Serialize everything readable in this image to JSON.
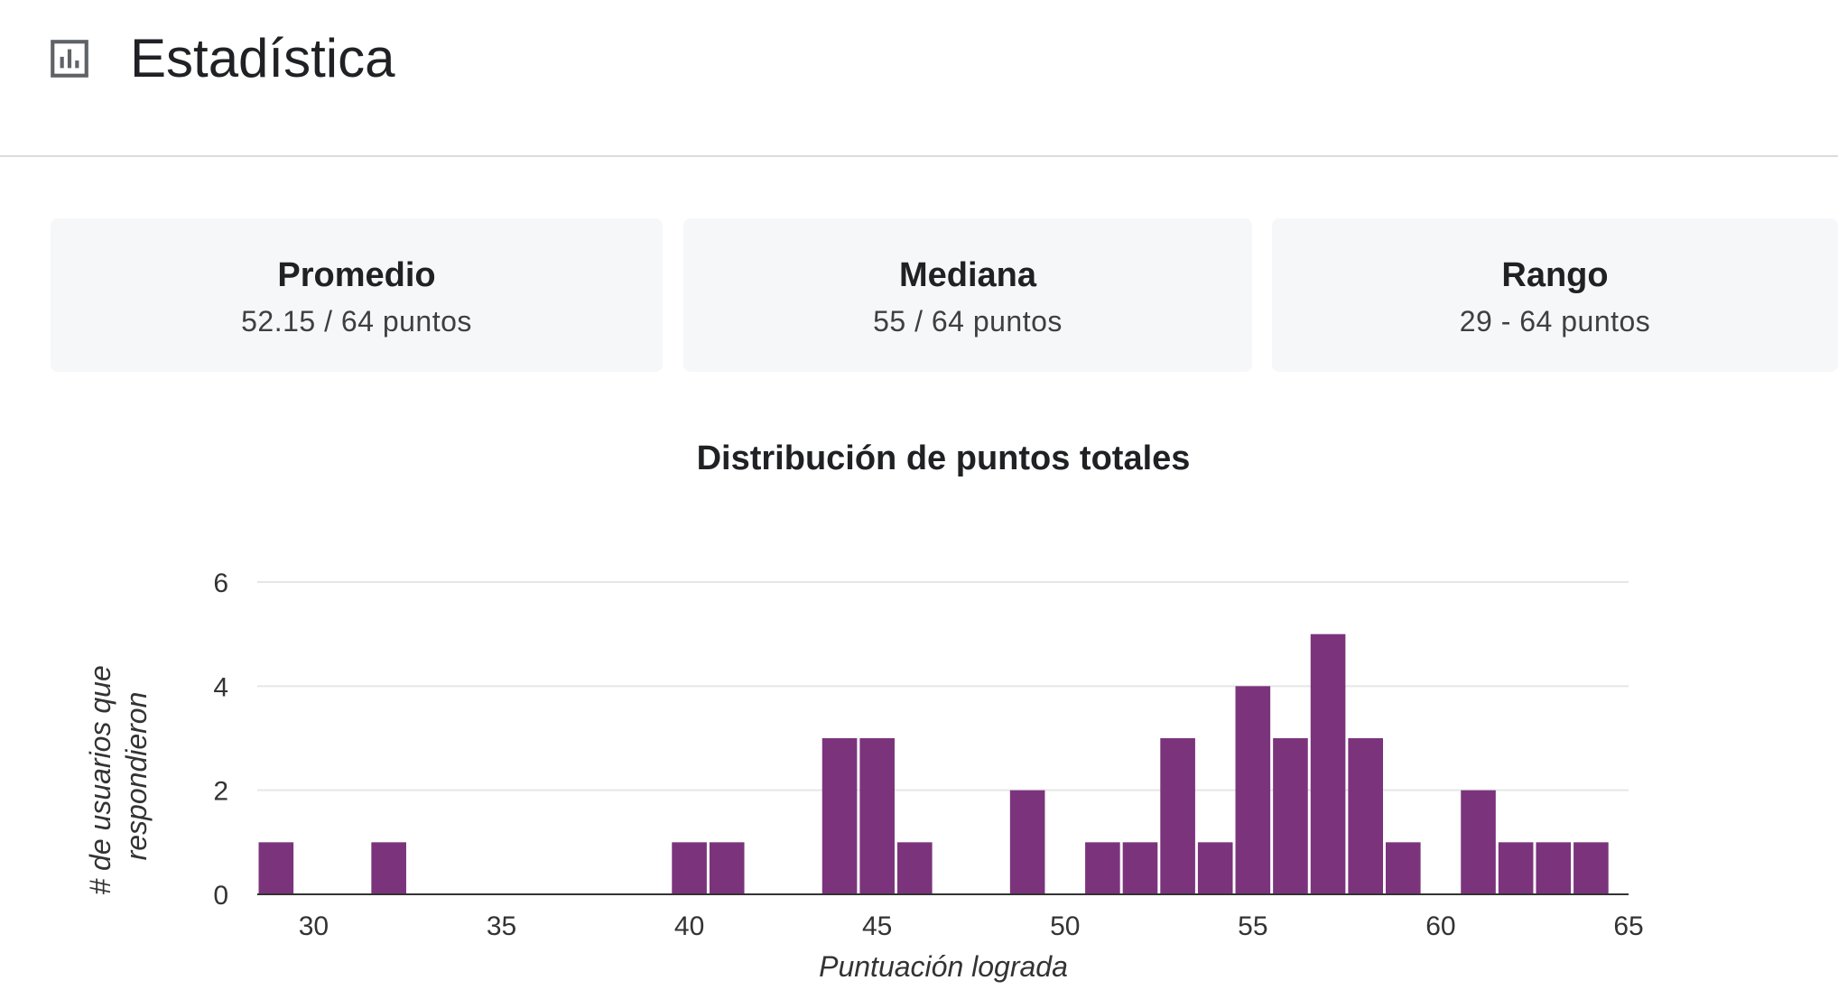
{
  "header": {
    "title": "Estadística",
    "icon": "bar-chart-icon"
  },
  "summary": [
    {
      "title": "Promedio",
      "value": "52.15 / 64 puntos"
    },
    {
      "title": "Mediana",
      "value": "55 / 64 puntos"
    },
    {
      "title": "Rango",
      "value": "29 - 64 puntos"
    }
  ],
  "colors": {
    "bar": "#7b347c",
    "grid": "#e6e6e6",
    "axis": "#333333",
    "card": "#f6f7f9"
  },
  "chart_data": {
    "type": "bar",
    "title": "Distribución de puntos totales",
    "xlabel": "Puntuación lograda",
    "ylabel_lines": [
      "# de usuarios que",
      "respondieron"
    ],
    "xlim": [
      28.5,
      65
    ],
    "ylim": [
      0,
      6
    ],
    "xticks": [
      30,
      35,
      40,
      45,
      50,
      55,
      60,
      65
    ],
    "yticks": [
      0,
      2,
      4,
      6
    ],
    "grid": true,
    "bins": [
      {
        "score": 29,
        "count": 1
      },
      {
        "score": 32,
        "count": 1
      },
      {
        "score": 40,
        "count": 1
      },
      {
        "score": 41,
        "count": 1
      },
      {
        "score": 44,
        "count": 3
      },
      {
        "score": 45,
        "count": 3
      },
      {
        "score": 46,
        "count": 1
      },
      {
        "score": 49,
        "count": 2
      },
      {
        "score": 51,
        "count": 1
      },
      {
        "score": 52,
        "count": 1
      },
      {
        "score": 53,
        "count": 3
      },
      {
        "score": 54,
        "count": 1
      },
      {
        "score": 55,
        "count": 4
      },
      {
        "score": 56,
        "count": 3
      },
      {
        "score": 57,
        "count": 5
      },
      {
        "score": 58,
        "count": 3
      },
      {
        "score": 59,
        "count": 1
      },
      {
        "score": 61,
        "count": 2
      },
      {
        "score": 62,
        "count": 1
      },
      {
        "score": 63,
        "count": 1
      },
      {
        "score": 64,
        "count": 1
      }
    ]
  }
}
